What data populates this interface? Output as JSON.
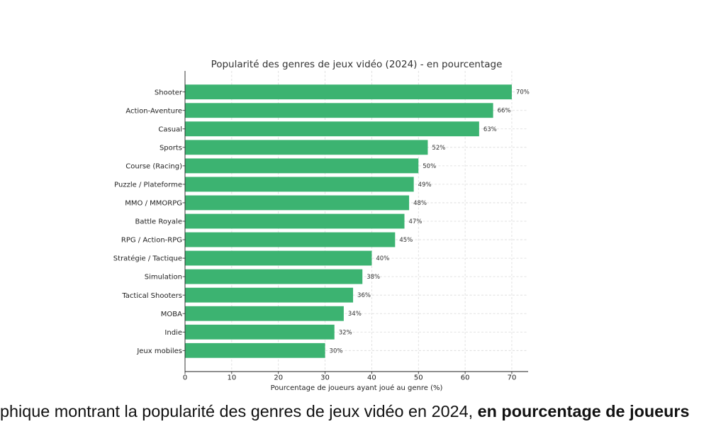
{
  "chart_data": {
    "type": "bar",
    "orientation": "horizontal",
    "title": "Popularité des genres de jeux vidéo (2024) - en pourcentage",
    "xlabel": "Pourcentage de joueurs ayant joué au genre (%)",
    "categories": [
      "Shooter",
      "Action-Aventure",
      "Casual",
      "Sports",
      "Course (Racing)",
      "Puzzle / Plateforme",
      "MMO / MMORPG",
      "Battle Royale",
      "RPG / Action-RPG",
      "Stratégie / Tactique",
      "Simulation",
      "Tactical Shooters",
      "MOBA",
      "Indie",
      "Jeux mobiles"
    ],
    "values": [
      70,
      66,
      63,
      52,
      50,
      49,
      48,
      47,
      45,
      40,
      38,
      36,
      34,
      32,
      30
    ],
    "data_labels": [
      "70%",
      "66%",
      "63%",
      "52%",
      "50%",
      "49%",
      "48%",
      "47%",
      "45%",
      "40%",
      "38%",
      "36%",
      "34%",
      "32%",
      "30%"
    ],
    "xlim": [
      0,
      73.5
    ],
    "xticks": [
      0,
      10,
      20,
      30,
      40,
      50,
      60,
      70
    ],
    "grid": true,
    "bar_color": "#3cb371"
  },
  "caption": {
    "text": "phique montrant la popularité des genres de jeux vidéo en 2024,",
    "bold": "en pourcentage de joueurs"
  }
}
